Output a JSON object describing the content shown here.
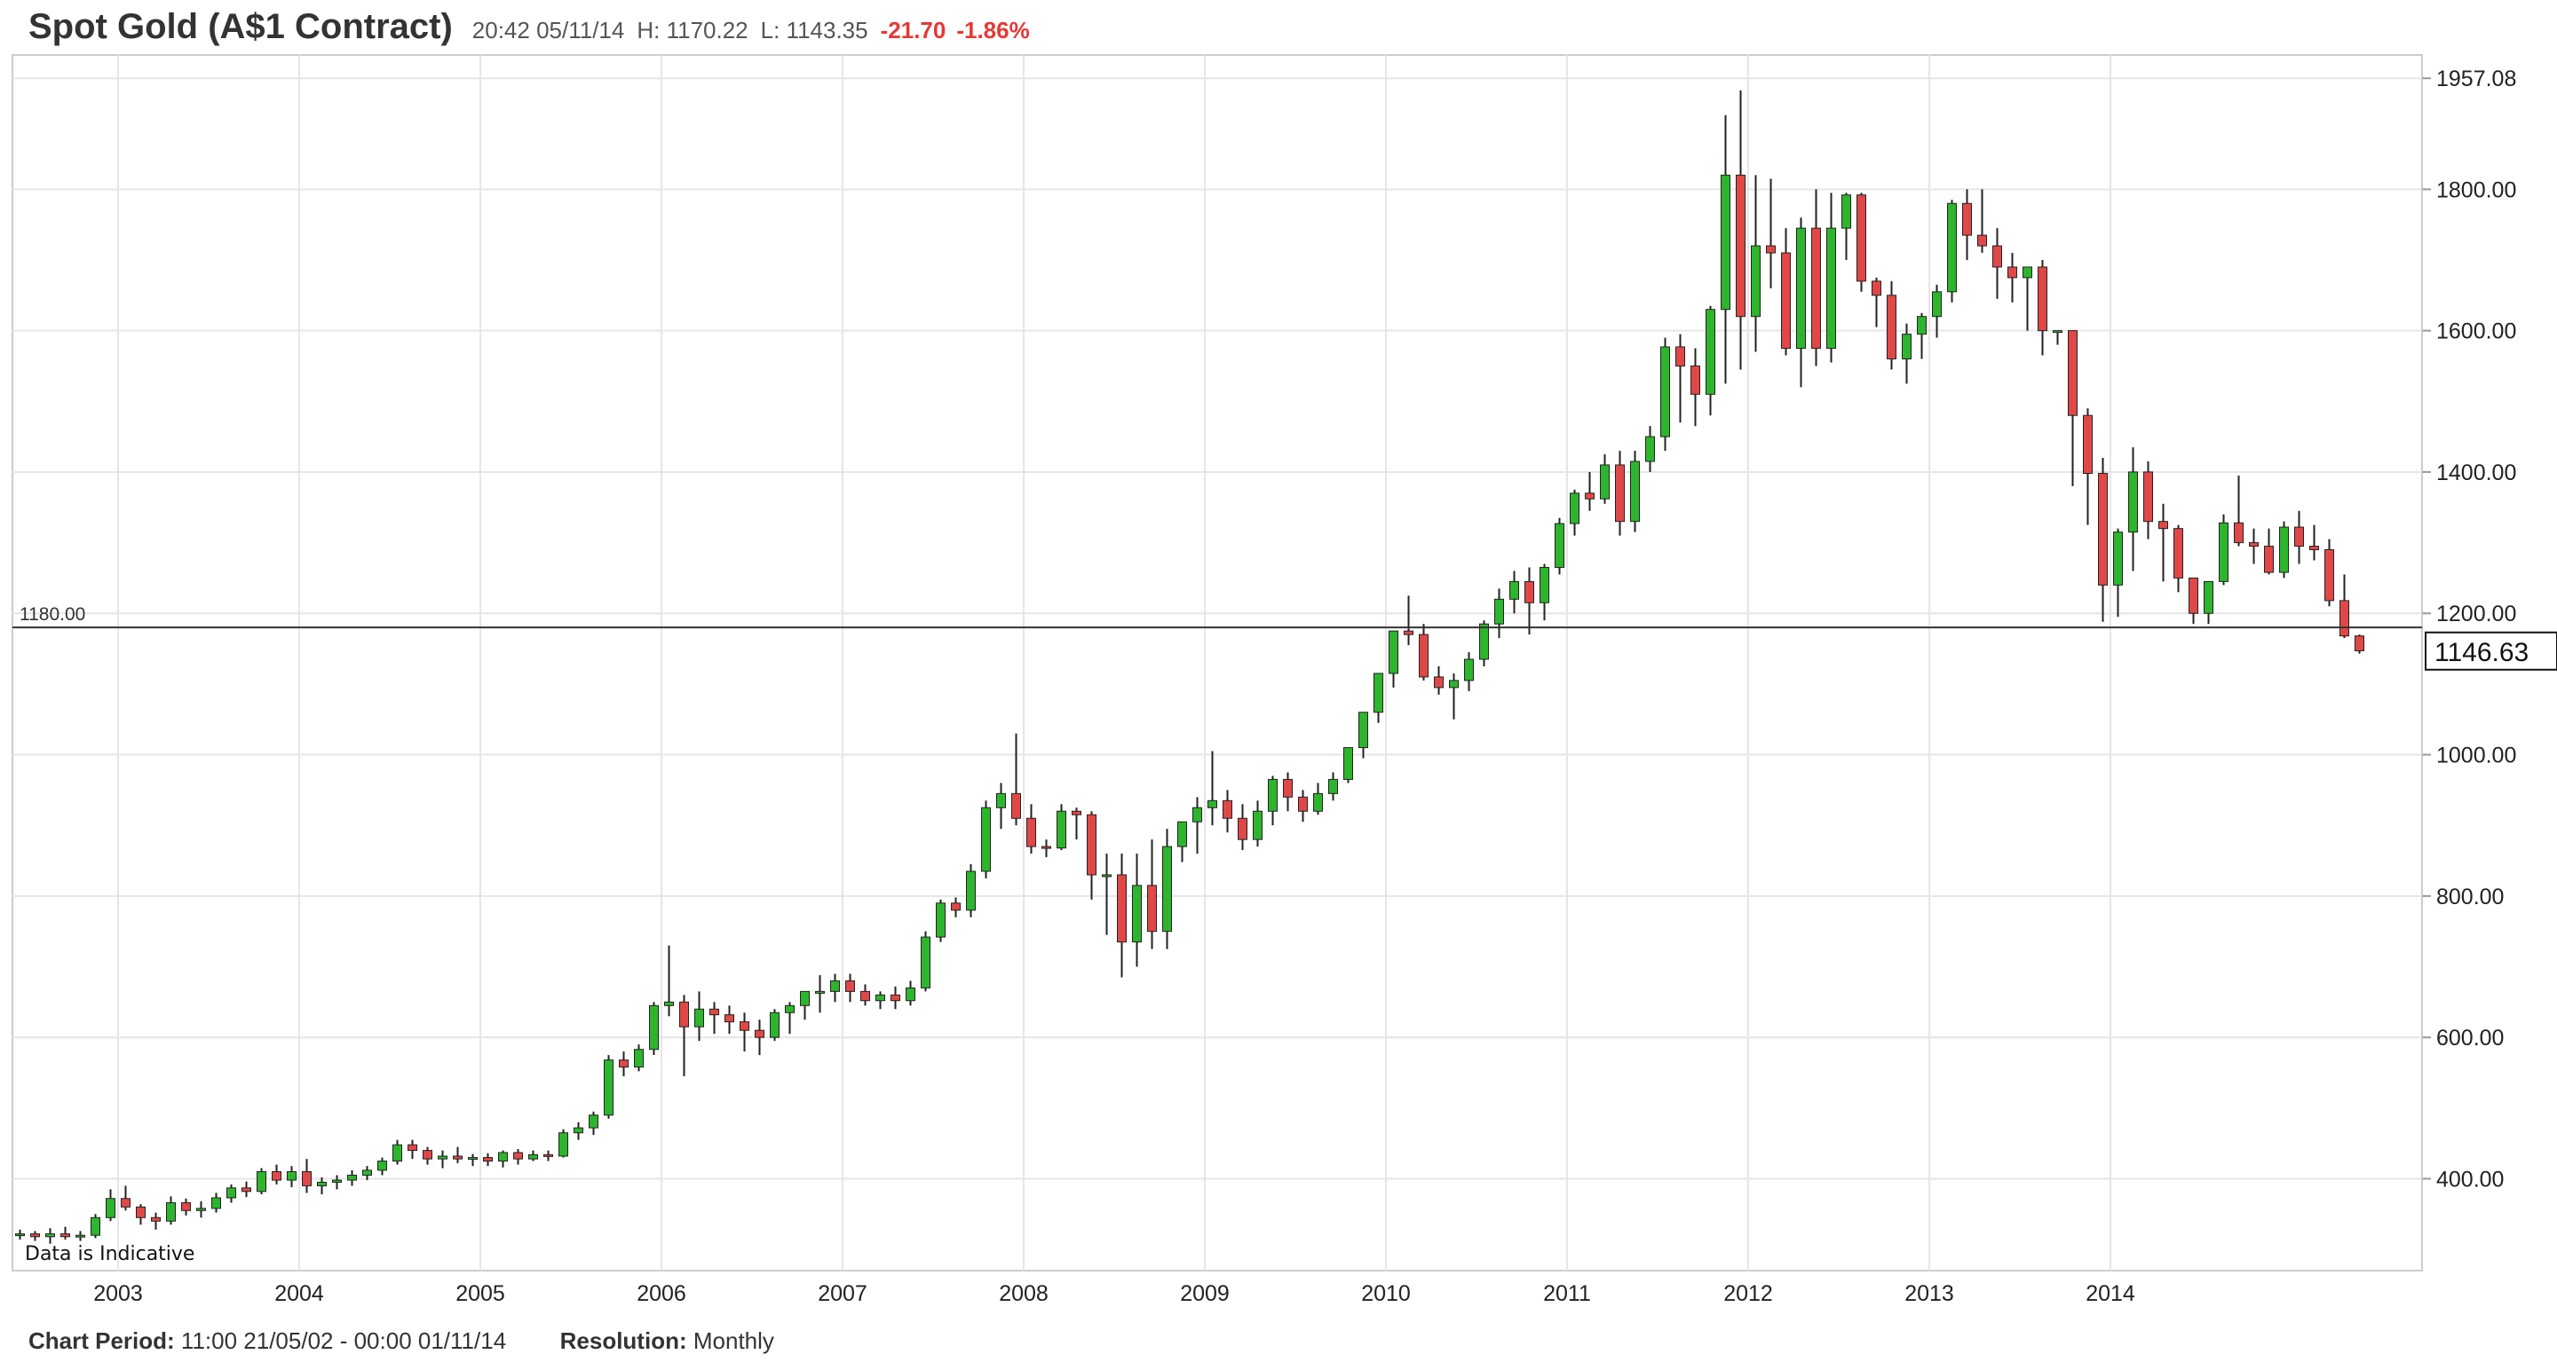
{
  "header": {
    "title": "Spot Gold (A$1 Contract)",
    "time": "20:42 05/11/14",
    "high": "H: 1170.22",
    "low": "L: 1143.35",
    "change": "-21.70",
    "change_pct": "-1.86%"
  },
  "footer": {
    "period_label": "Chart Period:",
    "period_value": "11:00 21/05/02 - 00:00 01/11/14",
    "resolution_label": "Resolution:",
    "resolution_value": "Monthly"
  },
  "chart_data": {
    "type": "candlestick",
    "title": "Spot Gold (A$1 Contract)",
    "x_tick_labels": [
      "2003",
      "2004",
      "2005",
      "2006",
      "2007",
      "2008",
      "2009",
      "2010",
      "2011",
      "2012",
      "2013",
      "2014"
    ],
    "y_tick_labels": [
      "400.00",
      "600.00",
      "800.00",
      "1000.00",
      "1200.00",
      "1400.00",
      "1600.00",
      "1800.00",
      "1957.08"
    ],
    "y_ticks": [
      400,
      600,
      800,
      1000,
      1200,
      1400,
      1600,
      1800,
      1957.08
    ],
    "ylim": [
      270,
      1990
    ],
    "reference_line": {
      "value": 1180,
      "label": "1180.00"
    },
    "last_price": {
      "value": 1146.63,
      "label": "1146.63"
    },
    "annotation": "Data is Indicative",
    "grid": true,
    "colors": {
      "up": "#2db52d",
      "down": "#e04848",
      "wick": "#222222",
      "grid": "#e6e6e6"
    },
    "start": "2002-06",
    "candles": [
      [
        320,
        328,
        314,
        322
      ],
      [
        322,
        326,
        312,
        318
      ],
      [
        318,
        330,
        308,
        322
      ],
      [
        322,
        332,
        314,
        318
      ],
      [
        318,
        326,
        312,
        320
      ],
      [
        320,
        350,
        316,
        345
      ],
      [
        345,
        385,
        340,
        372
      ],
      [
        372,
        390,
        355,
        360
      ],
      [
        360,
        364,
        335,
        345
      ],
      [
        345,
        352,
        328,
        340
      ],
      [
        340,
        375,
        335,
        366
      ],
      [
        366,
        372,
        348,
        355
      ],
      [
        355,
        368,
        345,
        358
      ],
      [
        358,
        380,
        352,
        373
      ],
      [
        373,
        392,
        366,
        387
      ],
      [
        387,
        396,
        374,
        382
      ],
      [
        382,
        415,
        378,
        410
      ],
      [
        410,
        420,
        392,
        398
      ],
      [
        398,
        418,
        388,
        410
      ],
      [
        410,
        428,
        380,
        390
      ],
      [
        390,
        402,
        378,
        395
      ],
      [
        395,
        405,
        385,
        398
      ],
      [
        398,
        412,
        390,
        405
      ],
      [
        405,
        418,
        398,
        412
      ],
      [
        412,
        430,
        405,
        425
      ],
      [
        425,
        455,
        420,
        448
      ],
      [
        448,
        455,
        428,
        440
      ],
      [
        440,
        445,
        420,
        428
      ],
      [
        428,
        440,
        415,
        432
      ],
      [
        432,
        445,
        422,
        428
      ],
      [
        428,
        435,
        418,
        430
      ],
      [
        430,
        436,
        418,
        425
      ],
      [
        425,
        440,
        416,
        437
      ],
      [
        437,
        442,
        420,
        428
      ],
      [
        428,
        440,
        425,
        434
      ],
      [
        434,
        440,
        425,
        432
      ],
      [
        432,
        470,
        430,
        465
      ],
      [
        465,
        480,
        455,
        472
      ],
      [
        472,
        495,
        462,
        490
      ],
      [
        490,
        575,
        485,
        568
      ],
      [
        568,
        580,
        545,
        558
      ],
      [
        558,
        590,
        552,
        583
      ],
      [
        583,
        650,
        575,
        645
      ],
      [
        645,
        730,
        630,
        650
      ],
      [
        650,
        660,
        545,
        615
      ],
      [
        615,
        665,
        595,
        640
      ],
      [
        640,
        650,
        605,
        632
      ],
      [
        632,
        645,
        605,
        622
      ],
      [
        622,
        635,
        580,
        610
      ],
      [
        610,
        625,
        575,
        600
      ],
      [
        600,
        640,
        595,
        635
      ],
      [
        635,
        650,
        605,
        645
      ],
      [
        645,
        660,
        625,
        665
      ],
      [
        665,
        688,
        635,
        665
      ],
      [
        665,
        690,
        650,
        680
      ],
      [
        680,
        690,
        650,
        665
      ],
      [
        665,
        675,
        645,
        652
      ],
      [
        652,
        665,
        640,
        660
      ],
      [
        660,
        672,
        640,
        652
      ],
      [
        652,
        680,
        645,
        670
      ],
      [
        670,
        750,
        665,
        742
      ],
      [
        742,
        795,
        735,
        790
      ],
      [
        790,
        798,
        770,
        780
      ],
      [
        780,
        845,
        770,
        835
      ],
      [
        835,
        935,
        825,
        925
      ],
      [
        925,
        960,
        895,
        945
      ],
      [
        945,
        1030,
        900,
        910
      ],
      [
        910,
        930,
        860,
        870
      ],
      [
        870,
        880,
        855,
        868
      ],
      [
        868,
        930,
        865,
        920
      ],
      [
        920,
        925,
        880,
        915
      ],
      [
        915,
        920,
        795,
        830
      ],
      [
        830,
        860,
        745,
        830
      ],
      [
        830,
        860,
        685,
        735
      ],
      [
        735,
        860,
        700,
        815
      ],
      [
        815,
        880,
        725,
        750
      ],
      [
        750,
        895,
        725,
        870
      ],
      [
        870,
        905,
        848,
        905
      ],
      [
        905,
        940,
        860,
        925
      ],
      [
        925,
        1005,
        900,
        935
      ],
      [
        935,
        950,
        890,
        910
      ],
      [
        910,
        930,
        865,
        880
      ],
      [
        880,
        935,
        870,
        920
      ],
      [
        920,
        970,
        900,
        965
      ],
      [
        965,
        975,
        920,
        940
      ],
      [
        940,
        950,
        905,
        920
      ],
      [
        920,
        960,
        915,
        945
      ],
      [
        945,
        975,
        935,
        965
      ],
      [
        965,
        1010,
        960,
        1010
      ],
      [
        1010,
        1060,
        995,
        1060
      ],
      [
        1060,
        1110,
        1045,
        1115
      ],
      [
        1115,
        1175,
        1095,
        1175
      ],
      [
        1175,
        1225,
        1155,
        1170
      ],
      [
        1170,
        1185,
        1105,
        1110
      ],
      [
        1110,
        1125,
        1085,
        1095
      ],
      [
        1095,
        1115,
        1050,
        1105
      ],
      [
        1105,
        1145,
        1090,
        1135
      ],
      [
        1135,
        1190,
        1125,
        1185
      ],
      [
        1185,
        1235,
        1165,
        1220
      ],
      [
        1220,
        1260,
        1200,
        1245
      ],
      [
        1245,
        1265,
        1170,
        1215
      ],
      [
        1215,
        1270,
        1190,
        1265
      ],
      [
        1265,
        1335,
        1255,
        1327
      ],
      [
        1327,
        1375,
        1310,
        1370
      ],
      [
        1370,
        1400,
        1345,
        1362
      ],
      [
        1362,
        1425,
        1355,
        1410
      ],
      [
        1410,
        1430,
        1310,
        1330
      ],
      [
        1330,
        1430,
        1315,
        1415
      ],
      [
        1415,
        1465,
        1400,
        1450
      ],
      [
        1450,
        1590,
        1430,
        1577
      ],
      [
        1577,
        1595,
        1470,
        1550
      ],
      [
        1550,
        1575,
        1465,
        1510
      ],
      [
        1510,
        1635,
        1480,
        1630
      ],
      [
        1630,
        1905,
        1525,
        1820
      ],
      [
        1820,
        1940,
        1545,
        1620
      ],
      [
        1620,
        1820,
        1570,
        1720
      ],
      [
        1720,
        1815,
        1660,
        1710
      ],
      [
        1710,
        1745,
        1565,
        1575
      ],
      [
        1575,
        1760,
        1520,
        1745
      ],
      [
        1745,
        1800,
        1550,
        1575
      ],
      [
        1575,
        1795,
        1555,
        1745
      ],
      [
        1745,
        1795,
        1700,
        1792
      ],
      [
        1792,
        1795,
        1655,
        1670
      ],
      [
        1670,
        1675,
        1605,
        1650
      ],
      [
        1650,
        1670,
        1545,
        1560
      ],
      [
        1560,
        1610,
        1525,
        1595
      ],
      [
        1595,
        1625,
        1560,
        1620
      ],
      [
        1620,
        1665,
        1590,
        1655
      ],
      [
        1655,
        1785,
        1640,
        1780
      ],
      [
        1780,
        1800,
        1700,
        1735
      ],
      [
        1735,
        1800,
        1710,
        1720
      ],
      [
        1720,
        1745,
        1645,
        1690
      ],
      [
        1690,
        1710,
        1640,
        1675
      ],
      [
        1675,
        1690,
        1600,
        1690
      ],
      [
        1690,
        1700,
        1565,
        1600
      ],
      [
        1600,
        1600,
        1580,
        1600
      ],
      [
        1600,
        1600,
        1380,
        1480
      ],
      [
        1480,
        1490,
        1325,
        1398
      ],
      [
        1398,
        1420,
        1188,
        1240
      ],
      [
        1240,
        1320,
        1195,
        1315
      ],
      [
        1315,
        1435,
        1260,
        1400
      ],
      [
        1400,
        1415,
        1305,
        1330
      ],
      [
        1330,
        1355,
        1245,
        1320
      ],
      [
        1320,
        1325,
        1230,
        1250
      ],
      [
        1250,
        1250,
        1185,
        1200
      ],
      [
        1200,
        1230,
        1185,
        1245
      ],
      [
        1245,
        1340,
        1240,
        1328
      ],
      [
        1328,
        1395,
        1295,
        1300
      ],
      [
        1300,
        1320,
        1270,
        1295
      ],
      [
        1295,
        1320,
        1255,
        1258
      ],
      [
        1258,
        1330,
        1250,
        1322
      ],
      [
        1322,
        1345,
        1270,
        1295
      ],
      [
        1295,
        1325,
        1275,
        1290
      ],
      [
        1290,
        1305,
        1210,
        1218
      ],
      [
        1218,
        1255,
        1165,
        1168
      ],
      [
        1168,
        1170,
        1143,
        1147
      ]
    ]
  }
}
